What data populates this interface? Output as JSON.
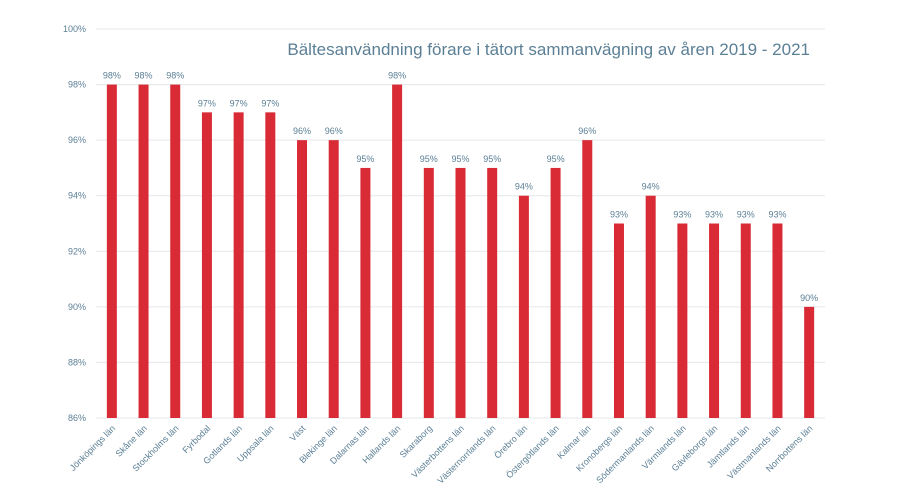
{
  "chart_data": {
    "type": "bar",
    "title": "Bältesanvändning förare i tätort sammanvägning av åren 2019 - 2021",
    "categories": [
      "Jönköpings län",
      "Skåne län",
      "Stockholms län",
      "Fyrbodal",
      "Gotlands län",
      "Uppsala län",
      "Väst",
      "Blekinge län",
      "Dalarnas län",
      "Hallands län",
      "Skaraborg",
      "Västerbottens län",
      "Västernorrlands län",
      "Örebro län",
      "Östergötlands län",
      "Kalmar län",
      "Kronobergs län",
      "Södermanlands län",
      "Värmlands län",
      "Gävleborgs län",
      "Jämtlands län",
      "Västmanlands län",
      "Norrbottens län"
    ],
    "values": [
      98,
      98,
      98,
      97,
      97,
      97,
      96,
      96,
      95,
      98,
      95,
      95,
      95,
      94,
      95,
      96,
      93,
      94,
      93,
      93,
      93,
      93,
      90
    ],
    "data_labels": [
      "98%",
      "98%",
      "98%",
      "97%",
      "97%",
      "97%",
      "96%",
      "96%",
      "95%",
      "98%",
      "95%",
      "95%",
      "95%",
      "94%",
      "95%",
      "96%",
      "93%",
      "94%",
      "93%",
      "93%",
      "93%",
      "93%",
      "90%"
    ],
    "yticks": [
      86,
      88,
      90,
      92,
      94,
      96,
      98,
      100
    ],
    "ytick_labels": [
      "86%",
      "88%",
      "90%",
      "92%",
      "94%",
      "96%",
      "98%",
      "100%"
    ],
    "ylim": [
      86,
      100
    ],
    "xlabel": "",
    "ylabel": "",
    "grid": true,
    "legend": "none",
    "colors": {
      "bar": "#d92b35",
      "text": "#5b7f95",
      "grid": "#e3e7ea"
    }
  }
}
